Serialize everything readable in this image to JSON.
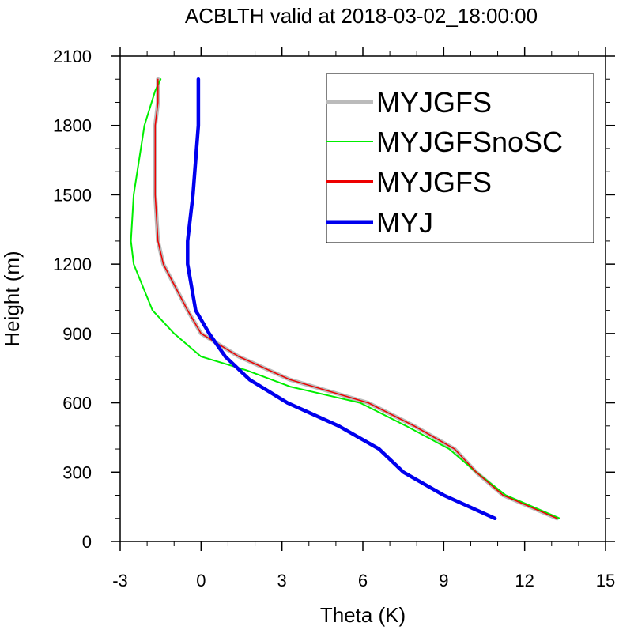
{
  "chart_data": {
    "type": "line",
    "title": "ACBLTH valid at 2018-03-02_18:00:00",
    "xlabel": "Theta (K)",
    "ylabel": "Height (m)",
    "xlim": [
      -3,
      15
    ],
    "ylim": [
      0,
      2100
    ],
    "xticks": [
      -3,
      0,
      3,
      6,
      9,
      12,
      15
    ],
    "yticks": [
      0,
      300,
      600,
      900,
      1200,
      1500,
      1800,
      2100
    ],
    "xtick_labels": [
      "-3",
      "0",
      "3",
      "6",
      "9",
      "12",
      "15"
    ],
    "ytick_labels": [
      "0",
      "300",
      "600",
      "900",
      "1200",
      "1500",
      "1800",
      "2100"
    ],
    "x_minor_step": 1,
    "y_minor_step": 100,
    "grid": false,
    "legend_position": "top-right",
    "series": [
      {
        "name": "MYJGFS",
        "color": "#bbbbbb",
        "x": [
          13.2,
          11.2,
          10.2,
          9.4,
          7.9,
          6.2,
          3.3,
          1.4,
          0.7,
          0.0,
          -0.5,
          -1.4,
          -1.6,
          -1.7,
          -1.7,
          -1.6,
          -1.6
        ],
        "y": [
          100,
          200,
          300,
          400,
          500,
          600,
          700,
          800,
          850,
          900,
          1000,
          1200,
          1300,
          1500,
          1800,
          1900,
          2000
        ]
      },
      {
        "name": "MYJGFSnoSC",
        "color": "#00ee00",
        "x": [
          13.3,
          11.3,
          10.2,
          9.2,
          7.6,
          5.9,
          3.3,
          1.7,
          0.0,
          -1.0,
          -1.8,
          -2.5,
          -2.6,
          -2.5,
          -2.1,
          -1.7,
          -1.5
        ],
        "y": [
          100,
          200,
          300,
          400,
          500,
          600,
          670,
          740,
          800,
          900,
          1000,
          1200,
          1300,
          1500,
          1800,
          1950,
          2000
        ]
      },
      {
        "name": "MYJGFS",
        "color": "#ee0000",
        "x": [
          13.2,
          11.2,
          10.2,
          9.4,
          7.9,
          6.2,
          3.3,
          1.4,
          0.7,
          0.0,
          -0.5,
          -1.4,
          -1.6,
          -1.7,
          -1.7,
          -1.6,
          -1.6
        ],
        "y": [
          100,
          200,
          300,
          400,
          500,
          600,
          700,
          800,
          850,
          900,
          1000,
          1200,
          1300,
          1500,
          1800,
          1900,
          2000
        ]
      },
      {
        "name": "MYJ",
        "color": "#0000ee",
        "x": [
          10.9,
          9.0,
          7.5,
          6.6,
          5.1,
          3.2,
          1.8,
          0.9,
          0.3,
          -0.2,
          -0.5,
          -0.5,
          -0.3,
          -0.1,
          -0.1
        ],
        "y": [
          100,
          200,
          300,
          400,
          500,
          600,
          700,
          800,
          900,
          1000,
          1200,
          1300,
          1500,
          1800,
          2000
        ]
      }
    ]
  }
}
